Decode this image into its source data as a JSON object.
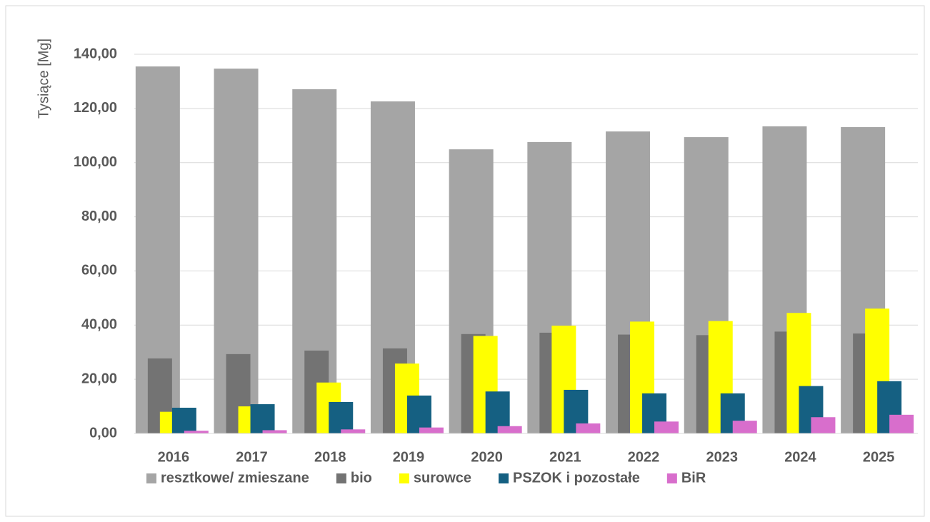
{
  "chart_data": {
    "type": "bar",
    "y_label": "Tysiące [Mg]",
    "categories": [
      "2016",
      "2017",
      "2018",
      "2019",
      "2020",
      "2021",
      "2022",
      "2023",
      "2024",
      "2025"
    ],
    "series": [
      {
        "name": "resztkowe/ zmieszane",
        "color": "#a5a5a5",
        "values": [
          135.5,
          134.7,
          127.1,
          122.6,
          104.9,
          107.6,
          111.5,
          109.4,
          113.4,
          113.1
        ]
      },
      {
        "name": "bio",
        "color": "#737373",
        "values": [
          27.7,
          29.3,
          30.6,
          31.4,
          36.7,
          37.2,
          36.5,
          36.3,
          37.6,
          36.9
        ]
      },
      {
        "name": "surowce",
        "color": "#ffff00",
        "values": [
          8.0,
          10.0,
          18.8,
          25.8,
          36.0,
          39.8,
          41.3,
          41.5,
          44.5,
          46.1
        ]
      },
      {
        "name": "PSZOK i pozostałe",
        "color": "#156082",
        "values": [
          9.5,
          10.8,
          11.6,
          14.0,
          15.5,
          16.1,
          14.8,
          14.8,
          17.5,
          19.3
        ]
      },
      {
        "name": "BiR",
        "color": "#d86ecc",
        "values": [
          1.0,
          1.2,
          1.5,
          2.2,
          2.7,
          3.7,
          4.4,
          4.7,
          6.0,
          6.9
        ]
      }
    ],
    "ylim": [
      0,
      140
    ],
    "yticks": [
      {
        "value": 0,
        "label": "0,00"
      },
      {
        "value": 20,
        "label": "20,00"
      },
      {
        "value": 40,
        "label": "40,00"
      },
      {
        "value": 60,
        "label": "60,00"
      },
      {
        "value": 80,
        "label": "80,00"
      },
      {
        "value": 100,
        "label": "100,00"
      },
      {
        "value": 120,
        "label": "120,00"
      },
      {
        "value": 140,
        "label": "140,00"
      }
    ],
    "grid": true,
    "legend": "bottom"
  }
}
